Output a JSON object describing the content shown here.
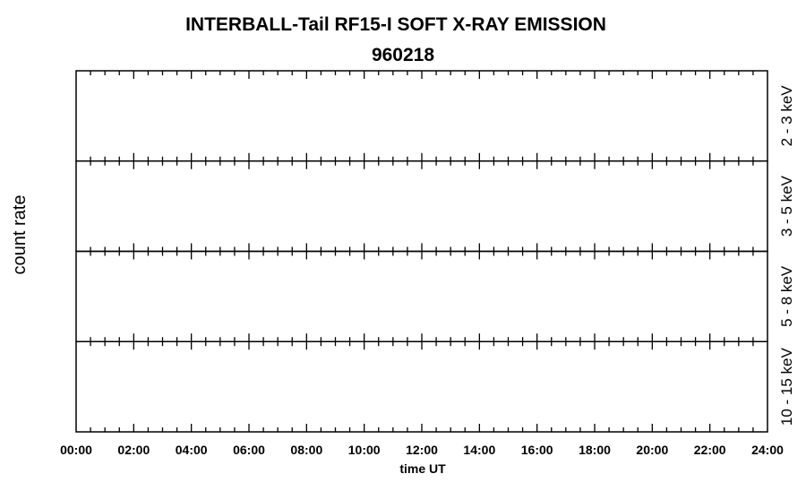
{
  "chart_data": {
    "type": "line",
    "title": "INTERBALL-Tail RF15-I SOFT X-RAY EMISSION",
    "subtitle": "960218",
    "xlabel": "time UT",
    "ylabel": "count rate",
    "xlim_hours": [
      0,
      24
    ],
    "x_tick_labels": [
      "00:00",
      "02:00",
      "04:00",
      "06:00",
      "08:00",
      "10:00",
      "12:00",
      "14:00",
      "16:00",
      "18:00",
      "20:00",
      "22:00",
      "24:00"
    ],
    "minor_tick_step_hours": 0.5,
    "major_tick_step_hours": 2,
    "grid": false,
    "panels": [
      {
        "label": "2 - 3 keV",
        "values": []
      },
      {
        "label": "3 - 5 keV",
        "values": []
      },
      {
        "label": "5 - 8 keV",
        "values": []
      },
      {
        "label": "10 - 15 keV",
        "values": []
      }
    ]
  }
}
